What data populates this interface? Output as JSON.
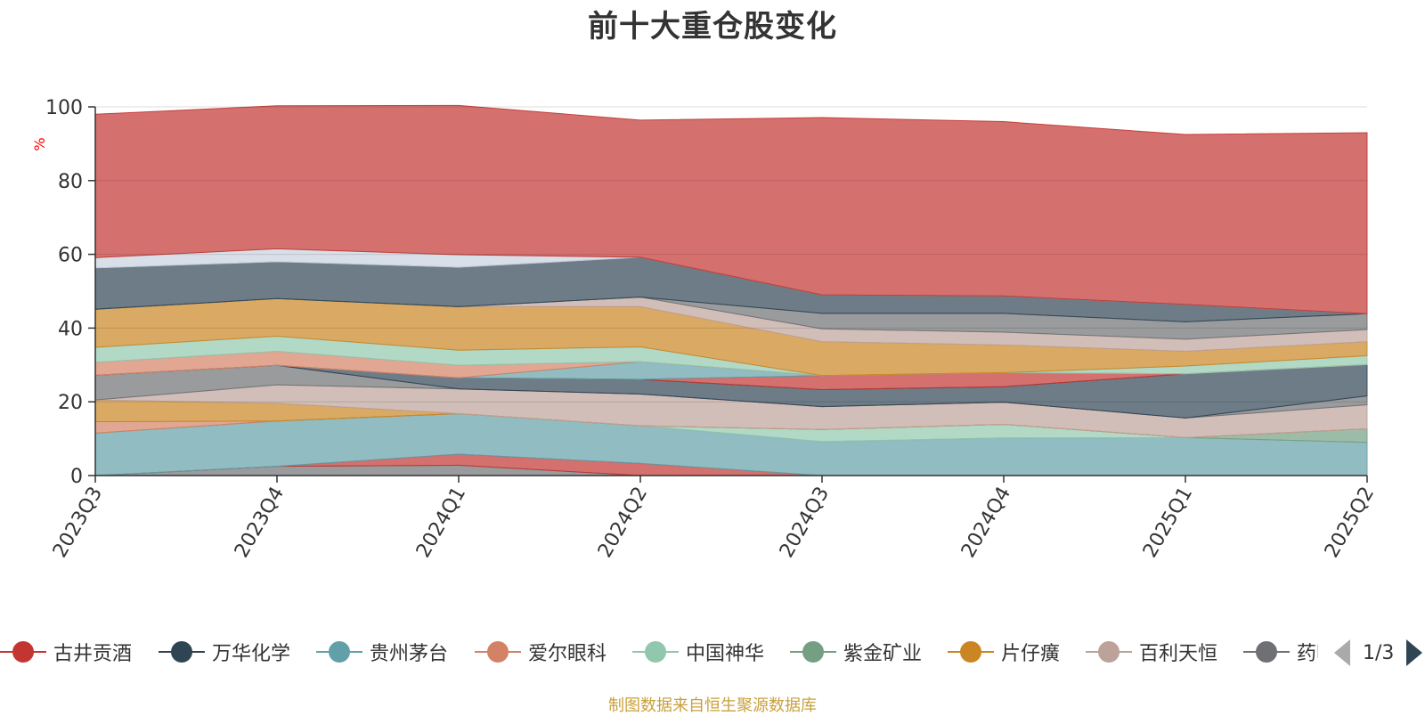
{
  "title": "前十大重仓股变化",
  "source_note": "制图数据来自恒生聚源数据库",
  "legend": {
    "items": [
      {
        "name": "古井贡酒",
        "color": "#c23531"
      },
      {
        "name": "万华化学",
        "color": "#2f4554"
      },
      {
        "name": "贵州茅台",
        "color": "#61a0a8"
      },
      {
        "name": "爱尔眼科",
        "color": "#d48265"
      },
      {
        "name": "中国神华",
        "color": "#91c7ae"
      },
      {
        "name": "紫金矿业",
        "color": "#749f83"
      },
      {
        "name": "片仔癀",
        "color": "#ca8622"
      },
      {
        "name": "百利天恒",
        "color": "#bda29a"
      },
      {
        "name": "药明康德",
        "color": "#6e7074"
      }
    ],
    "page_label": "1/3"
  },
  "chart_data": {
    "type": "area",
    "stacked": true,
    "title": "前十大重仓股变化",
    "ylabel": "%",
    "ylim": [
      0,
      100
    ],
    "yticks": [
      0,
      20,
      40,
      60,
      80,
      100
    ],
    "categories": [
      "2023Q3",
      "2023Q4",
      "2024Q1",
      "2024Q2",
      "2024Q3",
      "2024Q4",
      "2025Q1",
      "2025Q2"
    ],
    "bands": [
      {
        "color": "#6e7074",
        "values": [
          0,
          2.5,
          2.8,
          0,
          0,
          0,
          0,
          0
        ]
      },
      {
        "color": "#c23531",
        "values": [
          0,
          0,
          3,
          3.3,
          0,
          0,
          0,
          0
        ]
      },
      {
        "color": "#61a0a8",
        "values": [
          11.5,
          12.3,
          11,
          10.2,
          9.2,
          10.2,
          10.3,
          9
        ]
      },
      {
        "color": "#91c7ae",
        "values": [
          0,
          0,
          0,
          0,
          3.3,
          3.7,
          0,
          0
        ]
      },
      {
        "color": "#749f83",
        "values": [
          0,
          0,
          0,
          0,
          0,
          0,
          0,
          3.7
        ]
      },
      {
        "color": "#d48265",
        "values": [
          3.1,
          0,
          0,
          0,
          0,
          0,
          0,
          0
        ]
      },
      {
        "color": "#ca8622",
        "values": [
          5.9,
          4.8,
          0,
          0,
          0,
          0,
          0,
          0
        ]
      },
      {
        "color": "#bda29a",
        "values": [
          0,
          5,
          6.7,
          8.6,
          6.2,
          6,
          5.3,
          6.5
        ]
      },
      {
        "color": "#6e7074",
        "values": [
          6.7,
          5.3,
          0,
          0,
          0,
          0,
          0,
          2.4
        ]
      },
      {
        "color": "#2f4554",
        "values": [
          0,
          0,
          3,
          4,
          4.6,
          4.2,
          12,
          8.5
        ]
      },
      {
        "color": "#c23531",
        "values": [
          0,
          0,
          0,
          0,
          3.8,
          3.8,
          0,
          0
        ]
      },
      {
        "color": "#61a0a8",
        "values": [
          0,
          0,
          0,
          4.8,
          0,
          0,
          0,
          0
        ]
      },
      {
        "color": "#d48265",
        "values": [
          3.5,
          3.8,
          3.4,
          0,
          0,
          0,
          0,
          0
        ]
      },
      {
        "color": "#91c7ae",
        "values": [
          4.1,
          4.1,
          4.1,
          4,
          0,
          0,
          2.1,
          2.4
        ]
      },
      {
        "color": "#ca8622",
        "values": [
          10.3,
          10.2,
          11.8,
          10.9,
          9.2,
          7.5,
          4,
          3.8
        ]
      },
      {
        "color": "#bda29a",
        "values": [
          0,
          0,
          0,
          2.6,
          3.5,
          3.5,
          3.3,
          3.3
        ]
      },
      {
        "color": "#6e7074",
        "values": [
          0,
          0,
          0,
          0,
          4.2,
          5.1,
          4.7,
          4.3
        ]
      },
      {
        "color": "#2f4554",
        "values": [
          11.2,
          10,
          10.7,
          10.8,
          5,
          4.7,
          4.7,
          0
        ]
      },
      {
        "color": "#c9d2de",
        "values": [
          2.8,
          3.5,
          3.4,
          0,
          0,
          0,
          0,
          0
        ]
      },
      {
        "color": "#c23531",
        "values": [
          38.9,
          38.8,
          40.5,
          37.2,
          48.1,
          47.3,
          46.1,
          49.1
        ]
      }
    ]
  }
}
